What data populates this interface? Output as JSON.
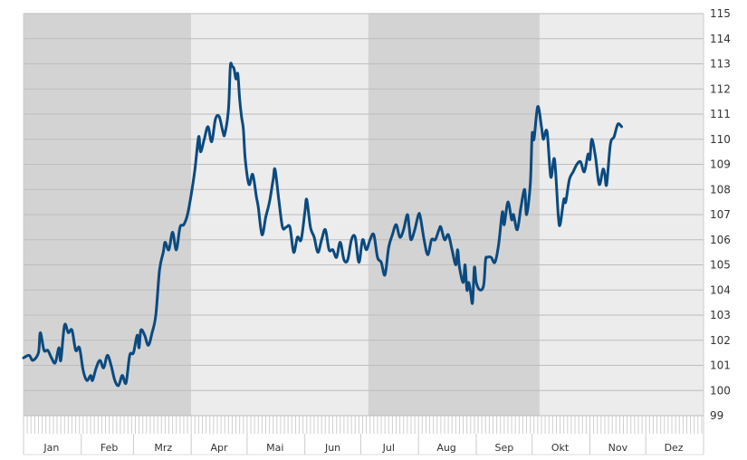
{
  "colors": {
    "band_dark": "#d3d3d3",
    "band_light": "#ececec",
    "grid": "#bdbdbd",
    "line": "#0b4a7f",
    "axis": "#cccccc"
  },
  "chart_data": {
    "type": "line",
    "title": "",
    "xlabel": "",
    "ylabel": "",
    "ylim": [
      99,
      115
    ],
    "yticks": [
      99,
      100,
      101,
      102,
      103,
      104,
      105,
      106,
      107,
      108,
      109,
      110,
      111,
      112,
      113,
      114,
      115
    ],
    "grid": true,
    "xlim": [
      0,
      365
    ],
    "x_axis_labels": [
      {
        "label": "Jan",
        "day": 15
      },
      {
        "label": "Feb",
        "day": 46
      },
      {
        "label": "Mrz",
        "day": 75
      },
      {
        "label": "Apr",
        "day": 105
      },
      {
        "label": "Mai",
        "day": 135
      },
      {
        "label": "Jun",
        "day": 166
      },
      {
        "label": "Jul",
        "day": 196
      },
      {
        "label": "Aug",
        "day": 227
      },
      {
        "label": "Sep",
        "day": 258
      },
      {
        "label": "Okt",
        "day": 288
      },
      {
        "label": "Nov",
        "day": 319
      },
      {
        "label": "Dez",
        "day": 349
      }
    ],
    "month_boundaries": [
      31,
      59,
      90,
      120,
      151,
      181,
      212,
      243,
      273,
      304,
      334
    ],
    "shaded_periods": [
      {
        "from_day": 0,
        "to_day": 90,
        "shade": "dark"
      },
      {
        "from_day": 90,
        "to_day": 185,
        "shade": "light"
      },
      {
        "from_day": 185,
        "to_day": 277,
        "shade": "dark"
      },
      {
        "from_day": 277,
        "to_day": 365,
        "shade": "light"
      }
    ],
    "series": [
      {
        "values": [
          [
            0,
            101.3
          ],
          [
            3,
            101.4
          ],
          [
            5,
            101.2
          ],
          [
            8,
            101.5
          ],
          [
            9,
            102.3
          ],
          [
            11,
            101.6
          ],
          [
            13,
            101.6
          ],
          [
            15,
            101.3
          ],
          [
            17,
            101.1
          ],
          [
            19,
            101.7
          ],
          [
            20,
            101.2
          ],
          [
            22,
            102.6
          ],
          [
            24,
            102.3
          ],
          [
            26,
            102.4
          ],
          [
            28,
            101.6
          ],
          [
            30,
            101.7
          ],
          [
            32,
            100.8
          ],
          [
            34,
            100.4
          ],
          [
            36,
            100.6
          ],
          [
            37,
            100.4
          ],
          [
            39,
            100.9
          ],
          [
            41,
            101.2
          ],
          [
            43,
            100.9
          ],
          [
            45,
            101.4
          ],
          [
            47,
            101.0
          ],
          [
            49,
            100.4
          ],
          [
            51,
            100.2
          ],
          [
            53,
            100.6
          ],
          [
            55,
            100.3
          ],
          [
            57,
            101.4
          ],
          [
            59,
            101.5
          ],
          [
            61,
            102.2
          ],
          [
            62,
            101.7
          ],
          [
            63,
            102.4
          ],
          [
            65,
            102.2
          ],
          [
            67,
            101.8
          ],
          [
            69,
            102.3
          ],
          [
            71,
            103.0
          ],
          [
            73,
            104.8
          ],
          [
            75,
            105.5
          ],
          [
            76,
            105.9
          ],
          [
            78,
            105.6
          ],
          [
            80,
            106.3
          ],
          [
            82,
            105.6
          ],
          [
            84,
            106.5
          ],
          [
            86,
            106.6
          ],
          [
            88,
            107.0
          ],
          [
            90,
            107.8
          ],
          [
            92,
            108.8
          ],
          [
            94,
            110.1
          ],
          [
            95,
            109.5
          ],
          [
            97,
            110.0
          ],
          [
            99,
            110.5
          ],
          [
            101,
            109.9
          ],
          [
            103,
            110.8
          ],
          [
            105,
            110.9
          ],
          [
            107,
            110.3
          ],
          [
            108,
            110.2
          ],
          [
            110,
            111.2
          ],
          [
            111,
            112.9
          ],
          [
            112,
            112.9
          ],
          [
            113,
            112.8
          ],
          [
            114,
            112.4
          ],
          [
            115,
            112.6
          ],
          [
            116,
            111.6
          ],
          [
            117,
            110.9
          ],
          [
            118,
            110.4
          ],
          [
            119,
            109.2
          ],
          [
            121,
            108.2
          ],
          [
            123,
            108.6
          ],
          [
            125,
            107.7
          ],
          [
            126,
            107.3
          ],
          [
            128,
            106.2
          ],
          [
            130,
            106.9
          ],
          [
            132,
            107.5
          ],
          [
            134,
            108.4
          ],
          [
            135,
            108.8
          ],
          [
            137,
            107.6
          ],
          [
            139,
            106.5
          ],
          [
            141,
            106.5
          ],
          [
            143,
            106.5
          ],
          [
            145,
            105.5
          ],
          [
            147,
            106.1
          ],
          [
            149,
            106.0
          ],
          [
            151,
            107.1
          ],
          [
            152,
            107.6
          ],
          [
            154,
            106.5
          ],
          [
            156,
            106.1
          ],
          [
            158,
            105.5
          ],
          [
            160,
            106.0
          ],
          [
            162,
            106.4
          ],
          [
            164,
            105.6
          ],
          [
            166,
            105.6
          ],
          [
            168,
            105.3
          ],
          [
            170,
            105.9
          ],
          [
            172,
            105.2
          ],
          [
            174,
            105.2
          ],
          [
            176,
            106.0
          ],
          [
            178,
            106.1
          ],
          [
            180,
            105.1
          ],
          [
            182,
            106.0
          ],
          [
            184,
            105.6
          ],
          [
            186,
            106.0
          ],
          [
            188,
            106.2
          ],
          [
            190,
            105.3
          ],
          [
            192,
            105.1
          ],
          [
            194,
            104.6
          ],
          [
            196,
            105.7
          ],
          [
            198,
            106.2
          ],
          [
            200,
            106.6
          ],
          [
            202,
            106.1
          ],
          [
            204,
            106.4
          ],
          [
            206,
            107.0
          ],
          [
            207,
            106.5
          ],
          [
            208,
            106.0
          ],
          [
            210,
            106.4
          ],
          [
            212,
            107.0
          ],
          [
            213,
            106.9
          ],
          [
            215,
            106.0
          ],
          [
            217,
            105.4
          ],
          [
            219,
            106.0
          ],
          [
            221,
            106.0
          ],
          [
            223,
            106.4
          ],
          [
            224,
            106.5
          ],
          [
            226,
            106.0
          ],
          [
            228,
            106.2
          ],
          [
            230,
            105.6
          ],
          [
            232,
            105.0
          ],
          [
            233,
            105.6
          ],
          [
            234,
            104.9
          ],
          [
            236,
            104.3
          ],
          [
            237,
            105.0
          ],
          [
            238,
            104.0
          ],
          [
            239,
            104.3
          ],
          [
            240,
            103.9
          ],
          [
            241,
            103.5
          ],
          [
            242,
            104.9
          ],
          [
            243,
            104.3
          ],
          [
            245,
            104.0
          ],
          [
            247,
            104.2
          ],
          [
            248,
            105.2
          ],
          [
            249,
            105.3
          ],
          [
            251,
            105.3
          ],
          [
            253,
            105.1
          ],
          [
            255,
            105.8
          ],
          [
            257,
            107.1
          ],
          [
            258,
            106.6
          ],
          [
            260,
            107.5
          ],
          [
            262,
            106.8
          ],
          [
            263,
            107.0
          ],
          [
            265,
            106.4
          ],
          [
            267,
            107.3
          ],
          [
            269,
            108.0
          ],
          [
            270,
            107.0
          ],
          [
            272,
            108.2
          ],
          [
            273,
            110.2
          ],
          [
            274,
            110.0
          ],
          [
            276,
            111.3
          ],
          [
            278,
            110.5
          ],
          [
            279,
            110.0
          ],
          [
            281,
            110.3
          ],
          [
            283,
            108.5
          ],
          [
            285,
            109.2
          ],
          [
            287,
            107.0
          ],
          [
            288,
            106.6
          ],
          [
            290,
            107.6
          ],
          [
            291,
            107.5
          ],
          [
            293,
            108.4
          ],
          [
            295,
            108.7
          ],
          [
            297,
            109.0
          ],
          [
            299,
            109.1
          ],
          [
            301,
            108.7
          ],
          [
            303,
            109.4
          ],
          [
            304,
            109.2
          ],
          [
            305,
            110.0
          ],
          [
            307,
            109.3
          ],
          [
            309,
            108.2
          ],
          [
            311,
            108.8
          ],
          [
            312,
            108.6
          ],
          [
            313,
            108.2
          ],
          [
            315,
            109.8
          ],
          [
            317,
            110.1
          ],
          [
            319,
            110.6
          ],
          [
            321,
            110.5
          ]
        ]
      }
    ]
  }
}
